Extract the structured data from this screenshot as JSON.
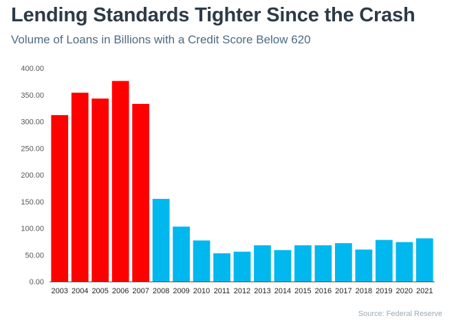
{
  "title": "Lending Standards Tighter Since the Crash",
  "subtitle": "Volume of Loans in Billions with a Credit Score Below 620",
  "source": "Source: Federal Reserve",
  "colors": {
    "pre_crash": "#ff0000",
    "post_crash": "#00b7ee",
    "axis": "#666666",
    "title": "#2e3a46",
    "subtitle": "#4d6a80"
  },
  "chart_data": {
    "type": "bar",
    "title": "Lending Standards Tighter Since the Crash",
    "subtitle": "Volume of Loans in Billions with a Credit Score Below 620",
    "xlabel": "",
    "ylabel": "",
    "ylim": [
      0,
      400
    ],
    "yticks": [
      "0.00",
      "50.00",
      "100.00",
      "150.00",
      "200.00",
      "250.00",
      "300.00",
      "350.00",
      "400.00"
    ],
    "grid": false,
    "categories": [
      "2003",
      "2004",
      "2005",
      "2006",
      "2007",
      "2008",
      "2009",
      "2010",
      "2011",
      "2012",
      "2013",
      "2014",
      "2015",
      "2016",
      "2017",
      "2018",
      "2019",
      "2020",
      "2021"
    ],
    "values": [
      312,
      354,
      343,
      376,
      333,
      155,
      103,
      77,
      53,
      56,
      68,
      59,
      68,
      68,
      72,
      60,
      78,
      74,
      81
    ],
    "bar_colors": [
      "#ff0000",
      "#ff0000",
      "#ff0000",
      "#ff0000",
      "#ff0000",
      "#00b7ee",
      "#00b7ee",
      "#00b7ee",
      "#00b7ee",
      "#00b7ee",
      "#00b7ee",
      "#00b7ee",
      "#00b7ee",
      "#00b7ee",
      "#00b7ee",
      "#00b7ee",
      "#00b7ee",
      "#00b7ee",
      "#00b7ee"
    ]
  }
}
